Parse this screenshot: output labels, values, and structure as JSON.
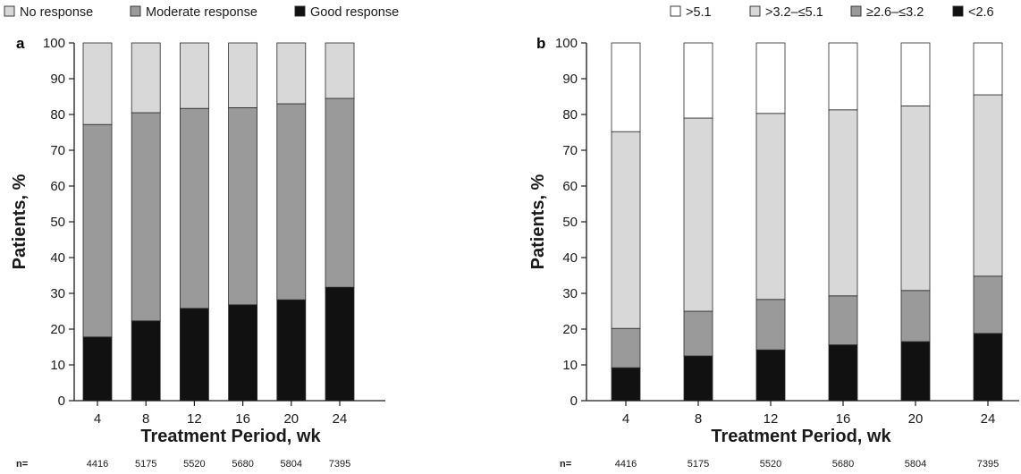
{
  "colors": {
    "no_response": "#d8d8d8",
    "moderate_response": "#9a9a9a",
    "good_response": "#111111",
    "gt_5_1": "#ffffff",
    "gt_3_2_le_5_1": "#d8d8d8",
    "ge_2_6_le_3_2": "#9a9a9a",
    "lt_2_6": "#111111",
    "axis": "#1a1a1a"
  },
  "n_label": "n=",
  "chart_data": [
    {
      "type": "bar",
      "stacked": true,
      "panel_label": "a",
      "title": "",
      "xlabel": "Treatment Period, wk",
      "ylabel": "Patients, %",
      "ylim": [
        0,
        100
      ],
      "yticks": [
        0,
        10,
        20,
        30,
        40,
        50,
        60,
        70,
        80,
        90,
        100
      ],
      "categories": [
        "4",
        "8",
        "12",
        "16",
        "20",
        "24"
      ],
      "n_values": [
        "4416",
        "5175",
        "5520",
        "5680",
        "5804",
        "7395"
      ],
      "legend_order": [
        "No response",
        "Moderate response",
        "Good response"
      ],
      "legend_position": "top",
      "series": [
        {
          "name": "Good response",
          "color_key": "good_response",
          "values": [
            17.8,
            22.3,
            25.8,
            26.8,
            28.2,
            31.7
          ]
        },
        {
          "name": "Moderate response",
          "color_key": "moderate_response",
          "values": [
            59.4,
            58.2,
            55.9,
            55.1,
            54.8,
            52.8
          ]
        },
        {
          "name": "No response",
          "color_key": "no_response",
          "values": [
            22.8,
            19.5,
            18.3,
            18.1,
            17.0,
            15.5
          ]
        }
      ]
    },
    {
      "type": "bar",
      "stacked": true,
      "panel_label": "b",
      "title": "",
      "xlabel": "Treatment Period, wk",
      "ylabel": "Patients, %",
      "ylim": [
        0,
        100
      ],
      "yticks": [
        0,
        10,
        20,
        30,
        40,
        50,
        60,
        70,
        80,
        90,
        100
      ],
      "categories": [
        "4",
        "8",
        "12",
        "16",
        "20",
        "24"
      ],
      "n_values": [
        "4416",
        "5175",
        "5520",
        "5680",
        "5804",
        "7395"
      ],
      "legend_order": [
        ">5.1",
        ">3.2–≤5.1",
        "≥2.6–≤3.2",
        "<2.6"
      ],
      "legend_position": "top",
      "series": [
        {
          "name": "<2.6",
          "color_key": "lt_2_6",
          "values": [
            9.2,
            12.5,
            14.2,
            15.6,
            16.5,
            18.8
          ]
        },
        {
          "name": "≥2.6–≤3.2",
          "color_key": "ge_2_6_le_3_2",
          "values": [
            11.0,
            12.5,
            14.1,
            13.7,
            14.3,
            16.0
          ]
        },
        {
          "name": ">3.2–≤5.1",
          "color_key": "gt_3_2_le_5_1",
          "values": [
            55.0,
            54.0,
            52.0,
            52.0,
            51.6,
            50.7
          ]
        },
        {
          "name": ">5.1",
          "color_key": "gt_5_1",
          "values": [
            24.8,
            21.0,
            19.7,
            18.7,
            17.6,
            14.5
          ]
        }
      ]
    }
  ]
}
